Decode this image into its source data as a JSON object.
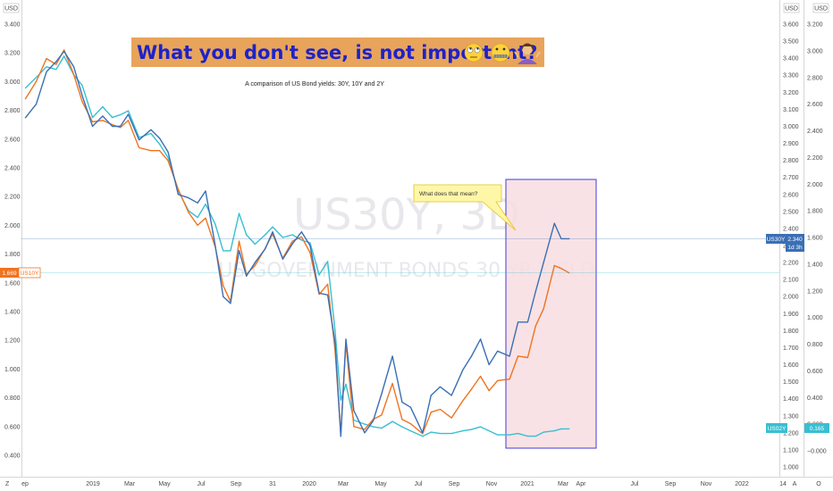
{
  "banner": {
    "text": "What you don't see, is not important?",
    "emojis": [
      "rolling-eyes-emoji",
      "zipper-mouth-emoji",
      "person-shrugging-emoji"
    ],
    "bg_color": "#e8a45a"
  },
  "subtitle": "A comparison of US Bond yields: 30Y, 10Y and 2Y",
  "watermark": {
    "symbol": "US30Y, 3D",
    "name": "US GOVERNMENT BONDS 30 YR YIELD"
  },
  "callout": "What does that mean?",
  "axes": {
    "left_unit": "USD",
    "right_inner_unit": "USD",
    "right_outer_unit": "USD",
    "bottom_left_tag": "Z",
    "bottom_right_buttons": [
      "A",
      "O"
    ],
    "left_ticks": [
      "3.400",
      "3.200",
      "3.000",
      "2.800",
      "2.600",
      "2.400",
      "2.200",
      "2.000",
      "1.800",
      "1.600",
      "1.400",
      "1.200",
      "1.000",
      "0.800",
      "0.600",
      "0.400"
    ],
    "right_inner_ticks": [
      "3.600",
      "3.500",
      "3.400",
      "3.300",
      "3.200",
      "3.100",
      "3.000",
      "2.900",
      "2.800",
      "2.700",
      "2.600",
      "2.500",
      "2.400",
      "2.300",
      "2.200",
      "2.100",
      "2.000",
      "1.900",
      "1.800",
      "1.700",
      "1.600",
      "1.500",
      "1.400",
      "1.300",
      "1.200",
      "1.100",
      "1.000"
    ],
    "right_outer_ticks": [
      "3.200",
      "3.000",
      "2.800",
      "2.600",
      "2.400",
      "2.200",
      "2.000",
      "1.800",
      "1.600",
      "1.400",
      "1.200",
      "1.000",
      "0.800",
      "0.600",
      "0.400",
      "0.200",
      "−0.000"
    ],
    "x_ticks": [
      "ep",
      "2019",
      "Mar",
      "May",
      "Jul",
      "Sep",
      "31",
      "2020",
      "Mar",
      "May",
      "Jul",
      "Sep",
      "Nov",
      "2021",
      "Mar",
      "Apr",
      "Jul",
      "Sep",
      "Nov",
      "2022",
      "14"
    ]
  },
  "tags": {
    "left": {
      "value": "1.669",
      "label": "US10Y"
    },
    "right_30y": {
      "label": "US30Y",
      "value": "2.340",
      "sub": "1d 3h"
    },
    "right_2y": {
      "label": "US02Y",
      "value": "0.165"
    }
  },
  "colors": {
    "us30y": "#3a6fb5",
    "us10y": "#f07320",
    "us02y": "#38bfd2",
    "highlight_fill": "#f8dde0",
    "highlight_stroke": "#3d3dd9",
    "callout_fill": "#fff7a8",
    "callout_stroke": "#e3c21a"
  },
  "chart_data": {
    "type": "line",
    "title": "A comparison of US Bond yields: 30Y, 10Y and 2Y",
    "x_range": [
      "2018-09",
      "2021-04"
    ],
    "series": [
      {
        "name": "US30Y",
        "axis": "right_inner",
        "ylim": [
          0.95,
          3.65
        ],
        "points": [
          [
            "2018-09-01",
            3.05
          ],
          [
            "2018-09-20",
            3.13
          ],
          [
            "2018-10-08",
            3.32
          ],
          [
            "2018-10-25",
            3.38
          ],
          [
            "2018-11-08",
            3.44
          ],
          [
            "2018-11-25",
            3.35
          ],
          [
            "2018-12-10",
            3.18
          ],
          [
            "2018-12-28",
            3.0
          ],
          [
            "2019-01-15",
            3.06
          ],
          [
            "2019-02-01",
            3.0
          ],
          [
            "2019-02-15",
            3.0
          ],
          [
            "2019-03-01",
            3.07
          ],
          [
            "2019-03-20",
            2.92
          ],
          [
            "2019-04-10",
            2.98
          ],
          [
            "2019-04-25",
            2.93
          ],
          [
            "2019-05-10",
            2.85
          ],
          [
            "2019-05-28",
            2.6
          ],
          [
            "2019-06-15",
            2.58
          ],
          [
            "2019-07-01",
            2.55
          ],
          [
            "2019-07-15",
            2.62
          ],
          [
            "2019-08-01",
            2.3
          ],
          [
            "2019-08-15",
            2.0
          ],
          [
            "2019-08-28",
            1.96
          ],
          [
            "2019-09-12",
            2.27
          ],
          [
            "2019-09-25",
            2.12
          ],
          [
            "2019-10-10",
            2.2
          ],
          [
            "2019-10-28",
            2.28
          ],
          [
            "2019-11-10",
            2.38
          ],
          [
            "2019-11-28",
            2.22
          ],
          [
            "2019-12-15",
            2.31
          ],
          [
            "2019-12-31",
            2.38
          ],
          [
            "2020-01-15",
            2.3
          ],
          [
            "2020-01-31",
            2.02
          ],
          [
            "2020-02-15",
            2.01
          ],
          [
            "2020-02-28",
            1.73
          ],
          [
            "2020-03-09",
            1.18
          ],
          [
            "2020-03-18",
            1.75
          ],
          [
            "2020-04-01",
            1.33
          ],
          [
            "2020-04-20",
            1.2
          ],
          [
            "2020-05-05",
            1.27
          ],
          [
            "2020-05-20",
            1.43
          ],
          [
            "2020-06-08",
            1.65
          ],
          [
            "2020-06-25",
            1.38
          ],
          [
            "2020-07-10",
            1.35
          ],
          [
            "2020-07-31",
            1.2
          ],
          [
            "2020-08-15",
            1.42
          ],
          [
            "2020-08-31",
            1.47
          ],
          [
            "2020-09-20",
            1.42
          ],
          [
            "2020-10-10",
            1.57
          ],
          [
            "2020-10-25",
            1.65
          ],
          [
            "2020-11-10",
            1.75
          ],
          [
            "2020-11-25",
            1.6
          ],
          [
            "2020-12-10",
            1.68
          ],
          [
            "2020-12-31",
            1.65
          ],
          [
            "2021-01-15",
            1.85
          ],
          [
            "2021-02-01",
            1.85
          ],
          [
            "2021-02-15",
            2.03
          ],
          [
            "2021-03-01",
            2.2
          ],
          [
            "2021-03-20",
            2.43
          ],
          [
            "2021-04-01",
            2.34
          ],
          [
            "2021-04-15",
            2.34
          ]
        ]
      },
      {
        "name": "US10Y",
        "axis": "left",
        "ylim": [
          0.3,
          3.5
        ],
        "points": [
          [
            "2018-09-01",
            2.88
          ],
          [
            "2018-09-20",
            3.0
          ],
          [
            "2018-10-08",
            3.16
          ],
          [
            "2018-10-25",
            3.12
          ],
          [
            "2018-11-08",
            3.22
          ],
          [
            "2018-11-25",
            3.05
          ],
          [
            "2018-12-10",
            2.86
          ],
          [
            "2018-12-28",
            2.72
          ],
          [
            "2019-01-15",
            2.73
          ],
          [
            "2019-02-01",
            2.7
          ],
          [
            "2019-02-15",
            2.68
          ],
          [
            "2019-03-01",
            2.73
          ],
          [
            "2019-03-20",
            2.54
          ],
          [
            "2019-04-10",
            2.52
          ],
          [
            "2019-04-25",
            2.52
          ],
          [
            "2019-05-10",
            2.45
          ],
          [
            "2019-05-28",
            2.25
          ],
          [
            "2019-06-15",
            2.09
          ],
          [
            "2019-07-01",
            2.0
          ],
          [
            "2019-07-15",
            2.05
          ],
          [
            "2019-08-01",
            1.85
          ],
          [
            "2019-08-15",
            1.58
          ],
          [
            "2019-08-28",
            1.47
          ],
          [
            "2019-09-12",
            1.89
          ],
          [
            "2019-09-25",
            1.66
          ],
          [
            "2019-10-10",
            1.72
          ],
          [
            "2019-10-28",
            1.84
          ],
          [
            "2019-11-10",
            1.94
          ],
          [
            "2019-11-28",
            1.77
          ],
          [
            "2019-12-15",
            1.89
          ],
          [
            "2019-12-31",
            1.92
          ],
          [
            "2020-01-15",
            1.81
          ],
          [
            "2020-01-31",
            1.52
          ],
          [
            "2020-02-15",
            1.59
          ],
          [
            "2020-02-28",
            1.13
          ],
          [
            "2020-03-09",
            0.55
          ],
          [
            "2020-03-18",
            1.18
          ],
          [
            "2020-04-01",
            0.6
          ],
          [
            "2020-04-20",
            0.58
          ],
          [
            "2020-05-05",
            0.65
          ],
          [
            "2020-05-20",
            0.68
          ],
          [
            "2020-06-08",
            0.9
          ],
          [
            "2020-06-25",
            0.65
          ],
          [
            "2020-07-10",
            0.62
          ],
          [
            "2020-07-31",
            0.55
          ],
          [
            "2020-08-15",
            0.7
          ],
          [
            "2020-08-31",
            0.72
          ],
          [
            "2020-09-20",
            0.66
          ],
          [
            "2020-10-10",
            0.78
          ],
          [
            "2020-10-25",
            0.86
          ],
          [
            "2020-11-10",
            0.95
          ],
          [
            "2020-11-25",
            0.85
          ],
          [
            "2020-12-10",
            0.92
          ],
          [
            "2020-12-31",
            0.93
          ],
          [
            "2021-01-15",
            1.09
          ],
          [
            "2021-02-01",
            1.08
          ],
          [
            "2021-02-15",
            1.3
          ],
          [
            "2021-03-01",
            1.42
          ],
          [
            "2021-03-20",
            1.72
          ],
          [
            "2021-04-01",
            1.7
          ],
          [
            "2021-04-15",
            1.669
          ]
        ]
      },
      {
        "name": "US02Y",
        "axis": "right_outer",
        "ylim": [
          -0.15,
          3.3
        ],
        "points": [
          [
            "2018-09-01",
            2.72
          ],
          [
            "2018-09-20",
            2.8
          ],
          [
            "2018-10-08",
            2.88
          ],
          [
            "2018-10-25",
            2.86
          ],
          [
            "2018-11-08",
            2.96
          ],
          [
            "2018-11-25",
            2.82
          ],
          [
            "2018-12-10",
            2.74
          ],
          [
            "2018-12-28",
            2.5
          ],
          [
            "2019-01-15",
            2.58
          ],
          [
            "2019-02-01",
            2.5
          ],
          [
            "2019-02-15",
            2.52
          ],
          [
            "2019-03-01",
            2.55
          ],
          [
            "2019-03-20",
            2.35
          ],
          [
            "2019-04-10",
            2.38
          ],
          [
            "2019-04-25",
            2.3
          ],
          [
            "2019-05-10",
            2.2
          ],
          [
            "2019-05-28",
            1.95
          ],
          [
            "2019-06-15",
            1.8
          ],
          [
            "2019-07-01",
            1.75
          ],
          [
            "2019-07-15",
            1.85
          ],
          [
            "2019-08-01",
            1.7
          ],
          [
            "2019-08-15",
            1.5
          ],
          [
            "2019-08-28",
            1.5
          ],
          [
            "2019-09-12",
            1.78
          ],
          [
            "2019-09-25",
            1.62
          ],
          [
            "2019-10-10",
            1.55
          ],
          [
            "2019-10-28",
            1.62
          ],
          [
            "2019-11-10",
            1.68
          ],
          [
            "2019-11-28",
            1.6
          ],
          [
            "2019-12-15",
            1.62
          ],
          [
            "2019-12-31",
            1.58
          ],
          [
            "2020-01-15",
            1.56
          ],
          [
            "2020-01-31",
            1.32
          ],
          [
            "2020-02-15",
            1.42
          ],
          [
            "2020-02-28",
            0.9
          ],
          [
            "2020-03-09",
            0.38
          ],
          [
            "2020-03-18",
            0.5
          ],
          [
            "2020-04-01",
            0.23
          ],
          [
            "2020-04-20",
            0.2
          ],
          [
            "2020-05-05",
            0.18
          ],
          [
            "2020-05-20",
            0.17
          ],
          [
            "2020-06-08",
            0.22
          ],
          [
            "2020-06-25",
            0.18
          ],
          [
            "2020-07-10",
            0.15
          ],
          [
            "2020-07-31",
            0.11
          ],
          [
            "2020-08-15",
            0.14
          ],
          [
            "2020-08-31",
            0.13
          ],
          [
            "2020-09-20",
            0.13
          ],
          [
            "2020-10-10",
            0.15
          ],
          [
            "2020-10-25",
            0.16
          ],
          [
            "2020-11-10",
            0.18
          ],
          [
            "2020-11-25",
            0.15
          ],
          [
            "2020-12-10",
            0.12
          ],
          [
            "2020-12-31",
            0.12
          ],
          [
            "2021-01-15",
            0.13
          ],
          [
            "2021-02-01",
            0.11
          ],
          [
            "2021-02-15",
            0.11
          ],
          [
            "2021-03-01",
            0.14
          ],
          [
            "2021-03-20",
            0.15
          ],
          [
            "2021-04-01",
            0.165
          ],
          [
            "2021-04-15",
            0.165
          ]
        ]
      }
    ],
    "highlight_range": [
      "2020-12-01",
      "2021-04-25"
    ],
    "grid": false
  }
}
